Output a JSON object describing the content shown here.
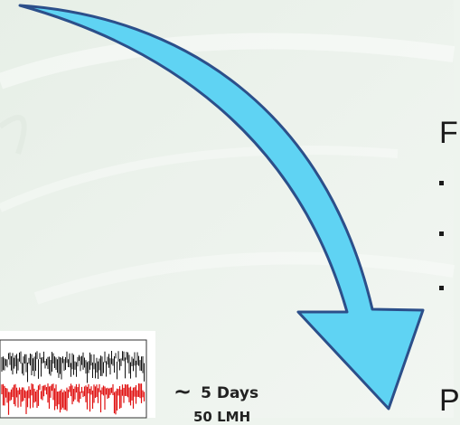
{
  "slide": {
    "heading_top_char": "F",
    "heading_bottom_char": "P",
    "bullet_count": 3
  },
  "caption": {
    "tilde": "~",
    "duration": "5 Days",
    "flux_partial": "50 LMH"
  },
  "colors": {
    "arrow_fill": "#5fd3f3",
    "arrow_stroke": "#2c4f8a",
    "background": "#eef4ee",
    "signal_black": "#111111",
    "signal_red": "#e01010"
  },
  "icons": {
    "arrow": "curved-down-right-arrow-icon"
  }
}
